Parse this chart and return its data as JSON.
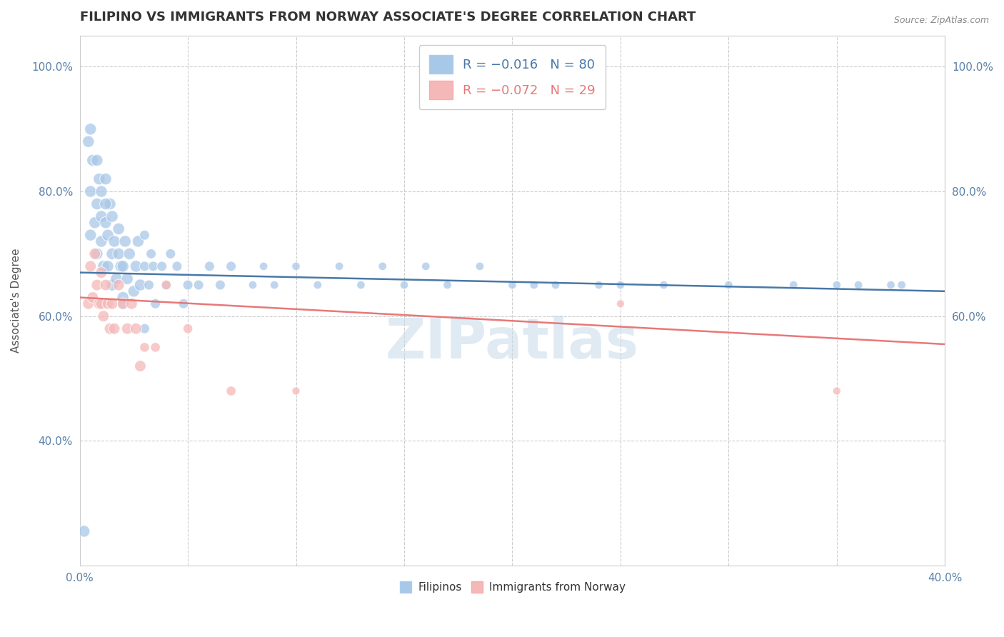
{
  "title": "FILIPINO VS IMMIGRANTS FROM NORWAY ASSOCIATE'S DEGREE CORRELATION CHART",
  "source": "Source: ZipAtlas.com",
  "ylabel": "Associate's Degree",
  "xlim": [
    0.0,
    0.4
  ],
  "ylim": [
    0.2,
    1.05
  ],
  "x_ticks": [
    0.0,
    0.05,
    0.1,
    0.15,
    0.2,
    0.25,
    0.3,
    0.35,
    0.4
  ],
  "x_tick_labels": [
    "0.0%",
    "",
    "",
    "",
    "",
    "",
    "",
    "",
    "40.0%"
  ],
  "y_ticks_left": [
    0.4,
    0.6,
    0.8,
    1.0
  ],
  "y_tick_labels_left": [
    "40.0%",
    "60.0%",
    "80.0%",
    "100.0%"
  ],
  "y_ticks_right": [
    0.6,
    0.8,
    1.0
  ],
  "y_tick_labels_right": [
    "60.0%",
    "80.0%",
    "100.0%"
  ],
  "blue_color": "#a8c8e8",
  "pink_color": "#f5b8b8",
  "blue_line_color": "#4878a8",
  "pink_line_color": "#e87878",
  "blue_legend_color": "#4878a8",
  "pink_legend_color": "#e87878",
  "watermark": "ZIPatlas",
  "background_color": "#ffffff",
  "grid_color": "#d8d8d8",
  "dashed_grid_color": "#c8c8c8",
  "filipino_x": [
    0.002,
    0.004,
    0.005,
    0.005,
    0.006,
    0.007,
    0.008,
    0.008,
    0.009,
    0.01,
    0.01,
    0.01,
    0.011,
    0.012,
    0.012,
    0.013,
    0.013,
    0.014,
    0.015,
    0.015,
    0.015,
    0.016,
    0.017,
    0.018,
    0.018,
    0.019,
    0.02,
    0.02,
    0.021,
    0.022,
    0.023,
    0.025,
    0.026,
    0.027,
    0.028,
    0.03,
    0.03,
    0.032,
    0.033,
    0.034,
    0.035,
    0.038,
    0.04,
    0.042,
    0.045,
    0.048,
    0.05,
    0.055,
    0.06,
    0.065,
    0.07,
    0.08,
    0.085,
    0.09,
    0.1,
    0.11,
    0.12,
    0.13,
    0.14,
    0.15,
    0.16,
    0.17,
    0.185,
    0.2,
    0.21,
    0.22,
    0.24,
    0.25,
    0.27,
    0.3,
    0.33,
    0.35,
    0.36,
    0.375,
    0.38,
    0.005,
    0.008,
    0.012,
    0.02,
    0.03
  ],
  "filipino_y": [
    0.255,
    0.88,
    0.73,
    0.8,
    0.85,
    0.75,
    0.7,
    0.78,
    0.82,
    0.72,
    0.76,
    0.8,
    0.68,
    0.75,
    0.82,
    0.68,
    0.73,
    0.78,
    0.65,
    0.7,
    0.76,
    0.72,
    0.66,
    0.7,
    0.74,
    0.68,
    0.63,
    0.68,
    0.72,
    0.66,
    0.7,
    0.64,
    0.68,
    0.72,
    0.65,
    0.68,
    0.73,
    0.65,
    0.7,
    0.68,
    0.62,
    0.68,
    0.65,
    0.7,
    0.68,
    0.62,
    0.65,
    0.65,
    0.68,
    0.65,
    0.68,
    0.65,
    0.68,
    0.65,
    0.68,
    0.65,
    0.68,
    0.65,
    0.68,
    0.65,
    0.68,
    0.65,
    0.68,
    0.65,
    0.65,
    0.65,
    0.65,
    0.65,
    0.65,
    0.65,
    0.65,
    0.65,
    0.65,
    0.65,
    0.65,
    0.9,
    0.85,
    0.78,
    0.62,
    0.58
  ],
  "norway_x": [
    0.004,
    0.005,
    0.006,
    0.007,
    0.008,
    0.009,
    0.01,
    0.01,
    0.011,
    0.012,
    0.013,
    0.014,
    0.015,
    0.016,
    0.018,
    0.02,
    0.022,
    0.024,
    0.026,
    0.028,
    0.03,
    0.035,
    0.04,
    0.05,
    0.07,
    0.1,
    0.25,
    0.35
  ],
  "norway_y": [
    0.62,
    0.68,
    0.63,
    0.7,
    0.65,
    0.62,
    0.62,
    0.67,
    0.6,
    0.65,
    0.62,
    0.58,
    0.62,
    0.58,
    0.65,
    0.62,
    0.58,
    0.62,
    0.58,
    0.52,
    0.55,
    0.55,
    0.65,
    0.58,
    0.48,
    0.48,
    0.62,
    0.48
  ],
  "f_trend_x0": 0.0,
  "f_trend_y0": 0.67,
  "f_trend_x1": 0.4,
  "f_trend_y1": 0.64,
  "n_trend_x0": 0.0,
  "n_trend_y0": 0.63,
  "n_trend_x1": 0.4,
  "n_trend_y1": 0.555,
  "title_fontsize": 13,
  "axis_label_fontsize": 11,
  "tick_fontsize": 11,
  "legend_fontsize": 13
}
